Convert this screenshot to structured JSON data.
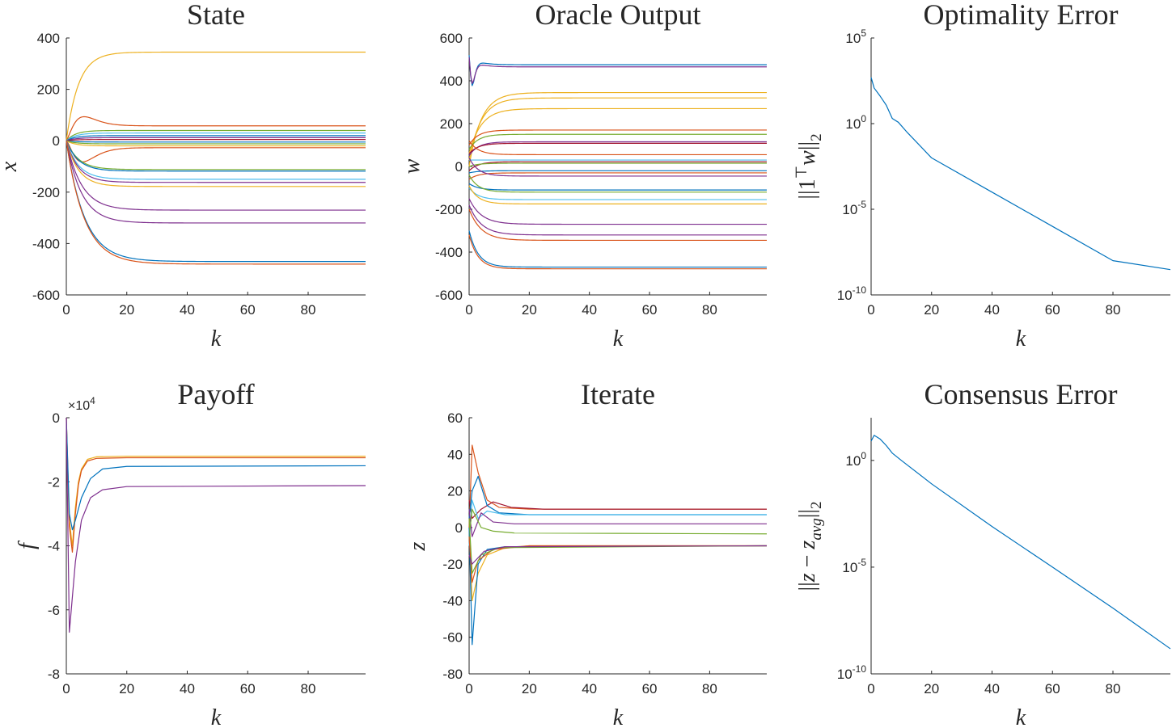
{
  "chart_data": [
    {
      "id": "state",
      "type": "line",
      "title": "State",
      "xlabel": "k",
      "ylabel": "x",
      "xlim": [
        0,
        99
      ],
      "ylim": [
        -600,
        400
      ],
      "xticks": [
        0,
        20,
        40,
        60,
        80
      ],
      "yticks": [
        -600,
        -400,
        -200,
        0,
        200,
        400
      ],
      "yscale": "linear",
      "grid": false,
      "series": [
        {
          "color": "#EDB120",
          "start": 0,
          "final": 345,
          "tau": 4
        },
        {
          "color": "#D95319",
          "start": 0,
          "final": 58,
          "tau": 3,
          "bump": 45,
          "bumpAt": 5
        },
        {
          "color": "#77AC30",
          "start": 0,
          "final": 40,
          "tau": 3
        },
        {
          "color": "#4DBEEE",
          "start": 0,
          "final": 30,
          "tau": 3
        },
        {
          "color": "#0072BD",
          "start": 0,
          "final": 20,
          "tau": 3
        },
        {
          "color": "#7E2F8E",
          "start": 0,
          "final": 12,
          "tau": 3
        },
        {
          "color": "#A2142F",
          "start": 0,
          "final": 5,
          "tau": 3
        },
        {
          "color": "#0072BD",
          "start": 0,
          "final": -5,
          "tau": 3
        },
        {
          "color": "#77AC30",
          "start": 0,
          "final": -12,
          "tau": 3
        },
        {
          "color": "#EDB120",
          "start": 0,
          "final": -20,
          "tau": 3
        },
        {
          "color": "#D95319",
          "start": 0,
          "final": -27,
          "tau": 3,
          "bump": -60,
          "bumpAt": 5
        },
        {
          "color": "#77AC30",
          "start": 0,
          "final": -112,
          "tau": 4
        },
        {
          "color": "#0072BD",
          "start": 0,
          "final": -118,
          "tau": 4
        },
        {
          "color": "#4DBEEE",
          "start": 0,
          "final": -150,
          "tau": 4
        },
        {
          "color": "#7E2F8E",
          "start": 0,
          "final": -162,
          "tau": 4
        },
        {
          "color": "#EDB120",
          "start": 0,
          "final": -178,
          "tau": 4
        },
        {
          "color": "#7E2F8E",
          "start": 0,
          "final": -270,
          "tau": 5
        },
        {
          "color": "#7E2F8E",
          "start": 0,
          "final": -320,
          "tau": 5
        },
        {
          "color": "#0072BD",
          "start": 0,
          "final": -470,
          "tau": 6
        },
        {
          "color": "#D95319",
          "start": 0,
          "final": -480,
          "tau": 6
        }
      ]
    },
    {
      "id": "oracle",
      "type": "line",
      "title": "Oracle Output",
      "xlabel": "k",
      "ylabel": "w",
      "xlim": [
        0,
        99
      ],
      "ylim": [
        -600,
        600
      ],
      "xticks": [
        0,
        20,
        40,
        60,
        80
      ],
      "yticks": [
        -600,
        -400,
        -200,
        0,
        200,
        400,
        600
      ],
      "yscale": "linear",
      "grid": false,
      "series": [
        {
          "color": "#0072BD",
          "start": 520,
          "final": 475,
          "tau": 3,
          "bump": -130,
          "bumpAt": 1
        },
        {
          "color": "#7E2F8E",
          "start": 510,
          "final": 465,
          "tau": 3,
          "bump": -110,
          "bumpAt": 1
        },
        {
          "color": "#EDB120",
          "start": 0,
          "final": 345,
          "tau": 4
        },
        {
          "color": "#EDB120",
          "start": 30,
          "final": 320,
          "tau": 4
        },
        {
          "color": "#EDB120",
          "start": 60,
          "final": 270,
          "tau": 4
        },
        {
          "color": "#D95319",
          "start": 100,
          "final": 170,
          "tau": 3
        },
        {
          "color": "#77AC30",
          "start": 80,
          "final": 150,
          "tau": 3
        },
        {
          "color": "#7E2F8E",
          "start": 50,
          "final": 115,
          "tau": 3
        },
        {
          "color": "#A2142F",
          "start": 60,
          "final": 108,
          "tau": 3
        },
        {
          "color": "#D95319",
          "start": 120,
          "final": 55,
          "tau": 3
        },
        {
          "color": "#4DBEEE",
          "start": 30,
          "final": 30,
          "tau": 3
        },
        {
          "color": "#A2142F",
          "start": -20,
          "final": 22,
          "tau": 3
        },
        {
          "color": "#77AC30",
          "start": 0,
          "final": 15,
          "tau": 3
        },
        {
          "color": "#0072BD",
          "start": -30,
          "final": -20,
          "tau": 3
        },
        {
          "color": "#D95319",
          "start": -60,
          "final": -30,
          "tau": 3
        },
        {
          "color": "#7E2F8E",
          "start": 40,
          "final": -45,
          "tau": 3
        },
        {
          "color": "#0072BD",
          "start": -80,
          "final": -110,
          "tau": 3
        },
        {
          "color": "#77AC30",
          "start": -40,
          "final": -120,
          "tau": 3
        },
        {
          "color": "#4DBEEE",
          "start": -100,
          "final": -155,
          "tau": 3
        },
        {
          "color": "#EDB120",
          "start": -90,
          "final": -175,
          "tau": 3
        },
        {
          "color": "#7E2F8E",
          "start": -150,
          "final": -270,
          "tau": 4
        },
        {
          "color": "#7E2F8E",
          "start": -180,
          "final": -320,
          "tau": 4
        },
        {
          "color": "#D95319",
          "start": -200,
          "final": -345,
          "tau": 4
        },
        {
          "color": "#0072BD",
          "start": -300,
          "final": -470,
          "tau": 3
        },
        {
          "color": "#D95319",
          "start": -320,
          "final": -478,
          "tau": 3
        }
      ]
    },
    {
      "id": "optimality",
      "type": "line",
      "title": "Optimality Error",
      "xlabel": "k",
      "ylabel": "||1^T w||_2",
      "xlim": [
        0,
        99
      ],
      "ylim": [
        1e-10,
        100000
      ],
      "xticks": [
        0,
        20,
        40,
        60,
        80
      ],
      "yticks": [
        1e-10,
        1e-05,
        1,
        100000
      ],
      "ytick_exponents": [
        "-10",
        "-5",
        "0",
        "5"
      ],
      "yscale": "log",
      "grid": false,
      "series": [
        {
          "color": "#0072BD",
          "points": [
            [
              0,
              500
            ],
            [
              1,
              120
            ],
            [
              3,
              40
            ],
            [
              5,
              12
            ],
            [
              7,
              2
            ],
            [
              9,
              1.2
            ],
            [
              12,
              0.3
            ],
            [
              20,
              0.01
            ],
            [
              40,
              0.0001
            ],
            [
              60,
              1e-06
            ],
            [
              80,
              1e-08
            ],
            [
              99,
              3e-09
            ]
          ]
        }
      ]
    },
    {
      "id": "payoff",
      "type": "line",
      "title": "Payoff",
      "xlabel": "k",
      "ylabel": "f",
      "xlim": [
        0,
        99
      ],
      "ylim": [
        -8,
        0
      ],
      "xticks": [
        0,
        20,
        40,
        60,
        80
      ],
      "yticks": [
        -8,
        -6,
        -4,
        -2,
        0
      ],
      "y_multiplier_base": "×10",
      "y_multiplier_exponent": "4",
      "yscale": "linear",
      "grid": false,
      "series": [
        {
          "color": "#EDB120",
          "points": [
            [
              0,
              0
            ],
            [
              1,
              -3.2
            ],
            [
              2,
              -4.0
            ],
            [
              3,
              -2.8
            ],
            [
              4,
              -2.0
            ],
            [
              5,
              -1.6
            ],
            [
              7,
              -1.3
            ],
            [
              10,
              -1.22
            ],
            [
              20,
              -1.2
            ],
            [
              99,
              -1.2
            ]
          ]
        },
        {
          "color": "#D95319",
          "points": [
            [
              0,
              0
            ],
            [
              1,
              -3.4
            ],
            [
              2,
              -4.2
            ],
            [
              3,
              -3.0
            ],
            [
              4,
              -2.1
            ],
            [
              5,
              -1.65
            ],
            [
              7,
              -1.35
            ],
            [
              10,
              -1.27
            ],
            [
              20,
              -1.25
            ],
            [
              99,
              -1.25
            ]
          ]
        },
        {
          "color": "#0072BD",
          "points": [
            [
              0,
              0
            ],
            [
              1,
              -3.0
            ],
            [
              2,
              -3.5
            ],
            [
              3,
              -3.2
            ],
            [
              5,
              -2.5
            ],
            [
              8,
              -1.9
            ],
            [
              12,
              -1.6
            ],
            [
              20,
              -1.52
            ],
            [
              99,
              -1.5
            ]
          ]
        },
        {
          "color": "#7E2F8E",
          "points": [
            [
              0,
              0
            ],
            [
              1,
              -6.7
            ],
            [
              2,
              -5.6
            ],
            [
              3,
              -4.5
            ],
            [
              5,
              -3.2
            ],
            [
              8,
              -2.5
            ],
            [
              12,
              -2.25
            ],
            [
              20,
              -2.15
            ],
            [
              99,
              -2.12
            ]
          ]
        }
      ]
    },
    {
      "id": "iterate",
      "type": "line",
      "title": "Iterate",
      "xlabel": "k",
      "ylabel": "z",
      "xlim": [
        0,
        99
      ],
      "ylim": [
        -80,
        60
      ],
      "xticks": [
        0,
        20,
        40,
        60,
        80
      ],
      "yticks": [
        -80,
        -60,
        -40,
        -20,
        0,
        20,
        40,
        60
      ],
      "yscale": "linear",
      "grid": false,
      "series": [
        {
          "color": "#D95319",
          "points": [
            [
              0,
              0
            ],
            [
              1,
              45
            ],
            [
              3,
              30
            ],
            [
              6,
              15
            ],
            [
              10,
              11
            ],
            [
              20,
              10
            ],
            [
              99,
              10
            ]
          ]
        },
        {
          "color": "#A2142F",
          "points": [
            [
              0,
              15
            ],
            [
              1,
              5
            ],
            [
              4,
              10
            ],
            [
              8,
              14
            ],
            [
              14,
              11
            ],
            [
              25,
              10
            ],
            [
              99,
              10
            ]
          ]
        },
        {
          "color": "#0072BD",
          "points": [
            [
              0,
              5
            ],
            [
              1,
              20
            ],
            [
              3,
              28
            ],
            [
              6,
              12
            ],
            [
              10,
              8
            ],
            [
              20,
              7
            ],
            [
              99,
              7
            ]
          ]
        },
        {
          "color": "#4DBEEE",
          "points": [
            [
              0,
              -10
            ],
            [
              1,
              15
            ],
            [
              3,
              5
            ],
            [
              6,
              9
            ],
            [
              12,
              7
            ],
            [
              99,
              7
            ]
          ]
        },
        {
          "color": "#7E2F8E",
          "points": [
            [
              0,
              10
            ],
            [
              1,
              -5
            ],
            [
              4,
              8
            ],
            [
              8,
              3
            ],
            [
              15,
              2
            ],
            [
              99,
              2
            ]
          ]
        },
        {
          "color": "#77AC30",
          "points": [
            [
              0,
              -5
            ],
            [
              1,
              10
            ],
            [
              4,
              0
            ],
            [
              8,
              -2
            ],
            [
              15,
              -3
            ],
            [
              99,
              -3.5
            ]
          ]
        },
        {
          "color": "#EDB120",
          "points": [
            [
              0,
              0
            ],
            [
              1,
              -40
            ],
            [
              3,
              -25
            ],
            [
              6,
              -15
            ],
            [
              12,
              -11
            ],
            [
              20,
              -10
            ],
            [
              99,
              -10
            ]
          ]
        },
        {
          "color": "#0072BD",
          "points": [
            [
              0,
              0
            ],
            [
              1,
              -64
            ],
            [
              3,
              -20
            ],
            [
              6,
              -12
            ],
            [
              12,
              -10.5
            ],
            [
              99,
              -10
            ]
          ]
        },
        {
          "color": "#D95319",
          "points": [
            [
              0,
              -5
            ],
            [
              1,
              -30
            ],
            [
              3,
              -18
            ],
            [
              8,
              -12
            ],
            [
              20,
              -10
            ],
            [
              99,
              -10
            ]
          ]
        },
        {
          "color": "#77AC30",
          "points": [
            [
              0,
              5
            ],
            [
              1,
              -25
            ],
            [
              4,
              -15
            ],
            [
              10,
              -11
            ],
            [
              99,
              -10
            ]
          ]
        },
        {
          "color": "#7E2F8E",
          "points": [
            [
              0,
              -15
            ],
            [
              1,
              -20
            ],
            [
              5,
              -13
            ],
            [
              12,
              -10.5
            ],
            [
              99,
              -10
            ]
          ]
        }
      ]
    },
    {
      "id": "consensus",
      "type": "line",
      "title": "Consensus Error",
      "xlabel": "k",
      "ylabel": "||z − z_avg||_2",
      "xlim": [
        0,
        99
      ],
      "ylim": [
        1e-10,
        100
      ],
      "xticks": [
        0,
        20,
        40,
        60,
        80
      ],
      "yticks": [
        1e-10,
        1e-05,
        1
      ],
      "ytick_exponents": [
        "-10",
        "-5",
        "0"
      ],
      "yscale": "log",
      "grid": false,
      "series": [
        {
          "color": "#0072BD",
          "points": [
            [
              0,
              8
            ],
            [
              1,
              15
            ],
            [
              3,
              10
            ],
            [
              5,
              5
            ],
            [
              7,
              2.2
            ],
            [
              10,
              1.0
            ],
            [
              20,
              0.08
            ],
            [
              40,
              0.0008
            ],
            [
              60,
              1e-05
            ],
            [
              80,
              1.2e-07
            ],
            [
              99,
              1.5e-09
            ]
          ]
        }
      ]
    }
  ]
}
